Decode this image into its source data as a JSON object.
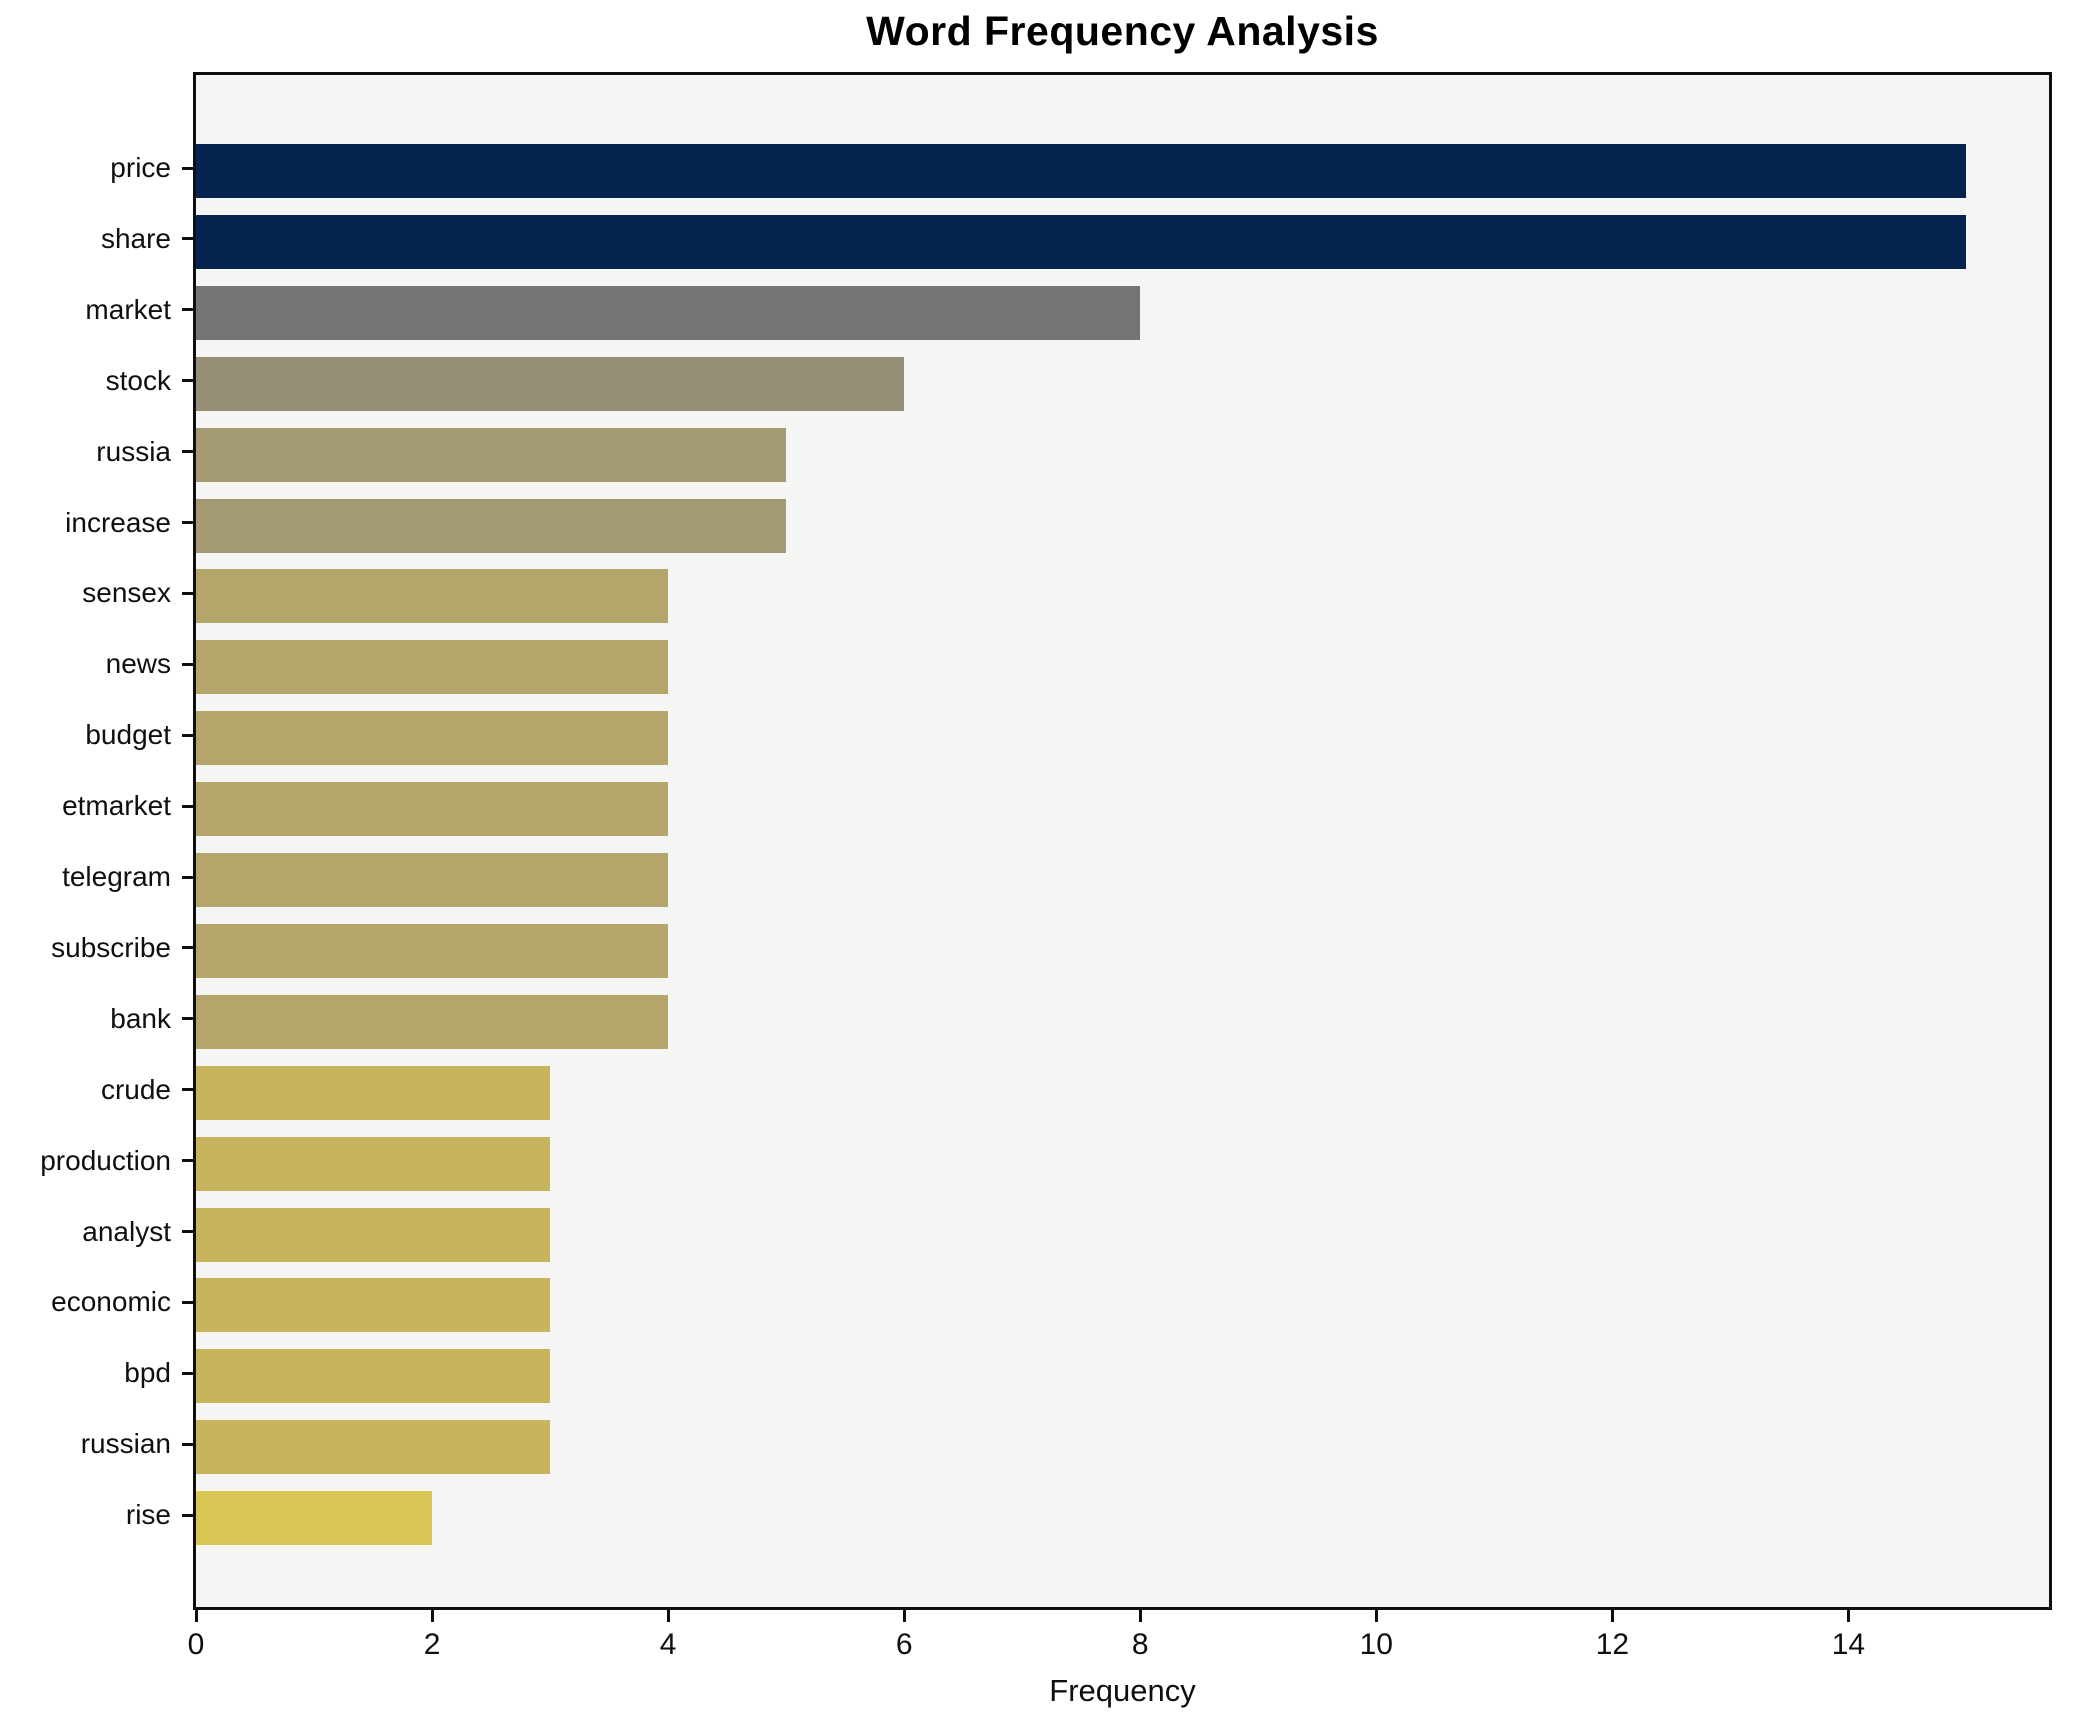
{
  "chart_data": {
    "type": "bar",
    "orientation": "horizontal",
    "title": "Word Frequency Analysis",
    "xlabel": "Frequency",
    "ylabel": "",
    "categories": [
      "price",
      "share",
      "market",
      "stock",
      "russia",
      "increase",
      "sensex",
      "news",
      "budget",
      "etmarket",
      "telegram",
      "subscribe",
      "bank",
      "crude",
      "production",
      "analyst",
      "economic",
      "bpd",
      "russian",
      "rise"
    ],
    "values": [
      15,
      15,
      8,
      6,
      5,
      5,
      4,
      4,
      4,
      4,
      4,
      4,
      4,
      3,
      3,
      3,
      3,
      3,
      3,
      2
    ],
    "x_ticks": [
      0,
      2,
      4,
      6,
      8,
      10,
      12,
      14
    ],
    "xlim": [
      0,
      15.75
    ],
    "grid": false,
    "legend": null,
    "value_colors": {
      "15": "#05234e",
      "8": "#747473",
      "6": "#948f75",
      "5": "#a49a73",
      "4": "#b4a56a",
      "3": "#c7b45c",
      "2": "#d9c755"
    },
    "plot_background": "#f5f5f4",
    "figure_background": "#ffffff",
    "spine_color": "#0f0f0f"
  }
}
